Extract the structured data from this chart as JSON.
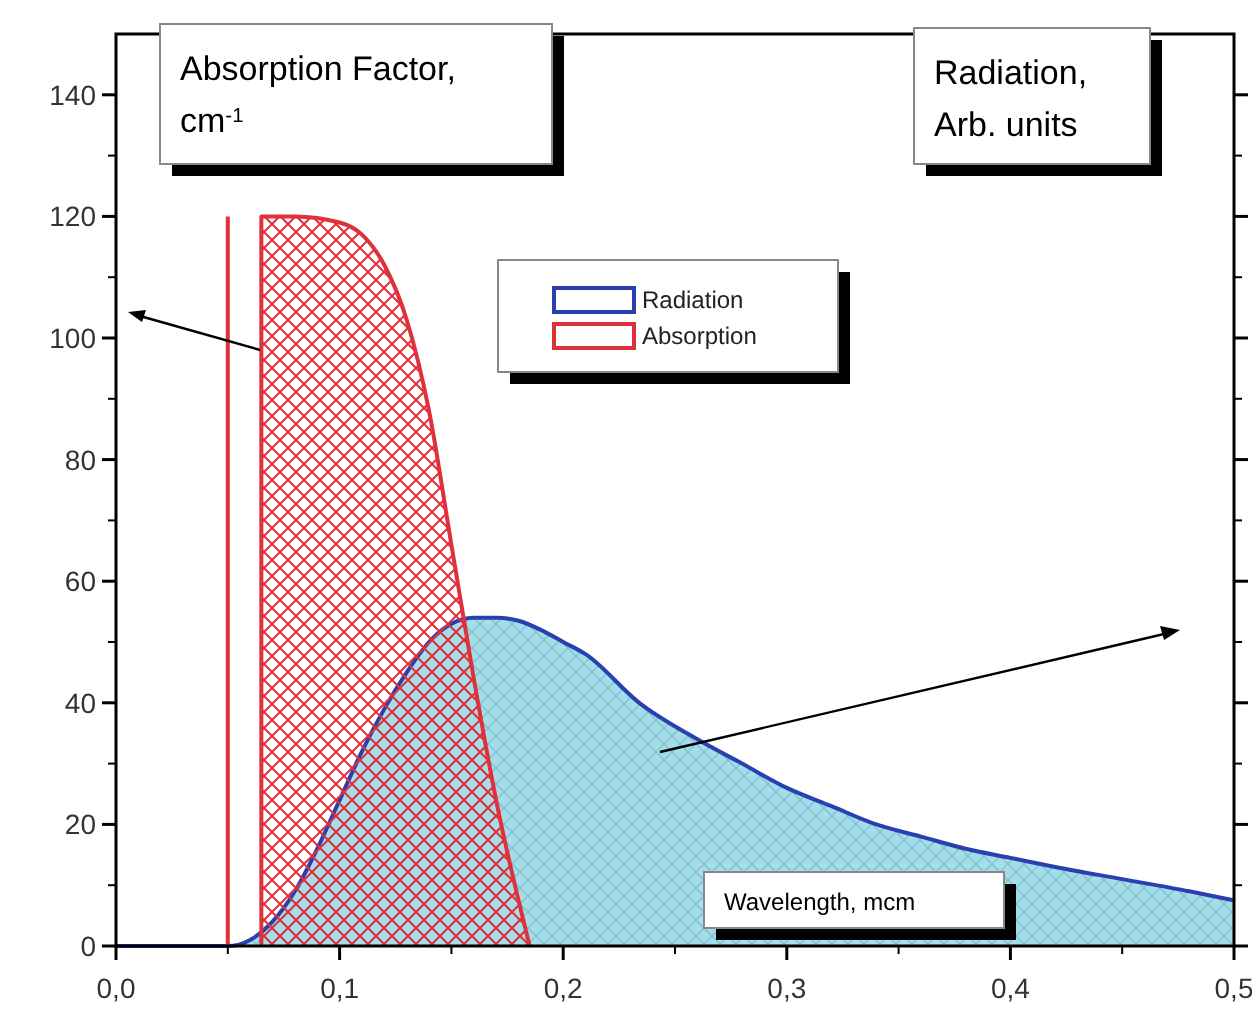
{
  "chart_data": {
    "type": "area",
    "xlabel": "Wavelength, mcm",
    "ylabel": "Absorption Factor, cm$^{-1}$",
    "y2label": "Radiation, Arb. units",
    "xlim": [
      0,
      0.5
    ],
    "ylim": [
      0,
      150
    ],
    "xticks": [
      {
        "value": 0,
        "label": "0,0"
      },
      {
        "value": 0.1,
        "label": "0,1"
      },
      {
        "value": 0.2,
        "label": "0,2"
      },
      {
        "value": 0.3,
        "label": "0,3"
      },
      {
        "value": 0.4,
        "label": "0,4"
      },
      {
        "value": 0.5,
        "label": "0,5"
      }
    ],
    "yticks": [
      0,
      20,
      40,
      60,
      80,
      100,
      120,
      140
    ],
    "legend": "top",
    "series": [
      {
        "name": "Radiation",
        "color": "#2a3fb0",
        "x": [
          0,
          0.05,
          0.06,
          0.07,
          0.08,
          0.09,
          0.1,
          0.11,
          0.12,
          0.13,
          0.14,
          0.15,
          0.16,
          0.17,
          0.18,
          0.19,
          0.2,
          0.21,
          0.234,
          0.26,
          0.28,
          0.3,
          0.32,
          0.34,
          0.36,
          0.38,
          0.4,
          0.42,
          0.45,
          0.48,
          0.5
        ],
        "values": [
          0,
          0,
          1,
          4,
          9,
          16,
          24,
          32,
          39,
          45,
          50,
          53,
          54,
          54,
          53.5,
          52,
          50,
          48,
          40,
          34,
          30,
          26,
          23,
          20,
          18,
          16,
          14.5,
          13,
          11,
          9,
          7.5
        ]
      },
      {
        "name": "Absorption",
        "color": "#e0303a",
        "x": [
          0.065,
          0.065,
          0.08,
          0.1,
          0.11,
          0.12,
          0.13,
          0.14,
          0.15,
          0.16,
          0.17,
          0.185
        ],
        "values": [
          0,
          120,
          120,
          119,
          117,
          112,
          103,
          88,
          66,
          44,
          24,
          0
        ]
      },
      {
        "type": "line",
        "color": "#e0303a",
        "x": [
          0.05,
          0.05
        ],
        "values": [
          0,
          120
        ]
      }
    ]
  }
}
